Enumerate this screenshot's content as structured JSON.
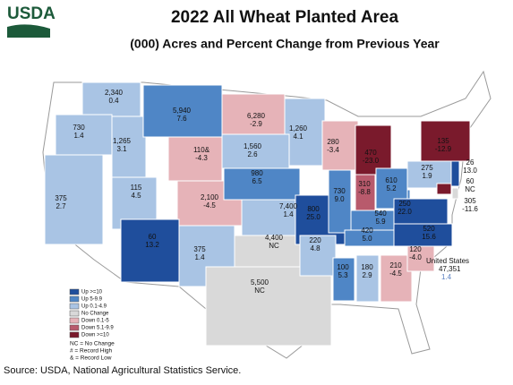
{
  "logo": "USDA",
  "title": "2022 All Wheat Planted Area",
  "subtitle": "(000) Acres and Percent Change from Previous Year",
  "regions": [
    {
      "acres": "2,340",
      "change": "0.4",
      "color": "#a9c4e4"
    },
    {
      "acres": "730",
      "change": "1.4",
      "color": "#a9c4e4"
    },
    {
      "acres": "1,265",
      "change": "3.1",
      "color": "#a9c4e4"
    },
    {
      "acres": "5,940",
      "change": "7.6",
      "color": "#4f86c6"
    },
    {
      "acres": "6,280",
      "change": "-2.9",
      "color": "#e6b3b8"
    },
    {
      "acres": "1,260",
      "change": "4.1",
      "color": "#a9c4e4"
    },
    {
      "acres": "1,560",
      "change": "2.6",
      "color": "#a9c4e4"
    },
    {
      "acres": "110&",
      "change": "-4.3",
      "color": "#e6b3b8"
    },
    {
      "acres": "375",
      "change": "2.7",
      "color": "#a9c4e4"
    },
    {
      "acres": "115",
      "change": "4.5",
      "color": "#a9c4e4"
    },
    {
      "acres": "2,100",
      "change": "-4.5",
      "color": "#e6b3b8"
    },
    {
      "acres": "980",
      "change": "6.5",
      "color": "#4f86c6"
    },
    {
      "acres": "7,400",
      "change": "1.4",
      "color": "#a9c4e4"
    },
    {
      "acres": "60",
      "change": "13.2",
      "color": "#1f4e9c"
    },
    {
      "acres": "375",
      "change": "1.4",
      "color": "#a9c4e4"
    },
    {
      "acres": "4,400",
      "change": "NC",
      "color": "#d9d9d9"
    },
    {
      "acres": "5,500",
      "change": "NC",
      "color": "#d9d9d9"
    },
    {
      "acres": "800",
      "change": "25.0",
      "color": "#1f4e9c"
    },
    {
      "acres": "280",
      "change": "-3.4",
      "color": "#e6b3b8"
    },
    {
      "acres": "730",
      "change": "9.0",
      "color": "#4f86c6"
    },
    {
      "acres": "470",
      "change": "-23.0",
      "color": "#7a1a2c"
    },
    {
      "acres": "310",
      "change": "-8.8",
      "color": "#b85a6c"
    },
    {
      "acres": "610",
      "change": "5.2",
      "color": "#4f86c6"
    },
    {
      "acres": "540",
      "change": "5.9",
      "color": "#4f86c6"
    },
    {
      "acres": "420",
      "change": "5.0",
      "color": "#4f86c6"
    },
    {
      "acres": "220",
      "change": "4.8",
      "color": "#a9c4e4"
    },
    {
      "acres": "100",
      "change": "5.3",
      "color": "#4f86c6"
    },
    {
      "acres": "180",
      "change": "2.9",
      "color": "#a9c4e4"
    },
    {
      "acres": "210",
      "change": "-4.5",
      "color": "#e6b3b8"
    },
    {
      "acres": "120",
      "change": "-4.0",
      "color": "#e6b3b8"
    },
    {
      "acres": "520",
      "change": "15.6",
      "color": "#1f4e9c"
    },
    {
      "acres": "250",
      "change": "22.0",
      "color": "#1f4e9c"
    },
    {
      "acres": "275",
      "change": "1.9",
      "color": "#a9c4e4"
    },
    {
      "acres": "135",
      "change": "-12.9",
      "color": "#7a1a2c"
    },
    {
      "acres": "26",
      "change": "13.0",
      "color": "#1f4e9c"
    },
    {
      "acres": "60",
      "change": "NC",
      "color": "#d9d9d9"
    },
    {
      "acres": "305",
      "change": "-11.6",
      "color": "#7a1a2c"
    }
  ],
  "total": {
    "label": "United States",
    "acres": "47,351",
    "change": "1.4"
  },
  "legend": [
    {
      "label": "Up >=10",
      "color": "#1f4e9c"
    },
    {
      "label": "Up 5-9.9",
      "color": "#4f86c6"
    },
    {
      "label": "Up 0.1-4.9",
      "color": "#a9c4e4"
    },
    {
      "label": "No Change",
      "color": "#d9d9d9"
    },
    {
      "label": "Down 0.1-5",
      "color": "#e6b3b8"
    },
    {
      "label": "Down 5.1-9.9",
      "color": "#b85a6c"
    },
    {
      "label": "Down >=10",
      "color": "#7a1a2c"
    }
  ],
  "notes": [
    "NC = No Change",
    "# = Record High",
    "& = Record Low"
  ],
  "source": "Source: USDA, National Agricultural Statistics Service."
}
